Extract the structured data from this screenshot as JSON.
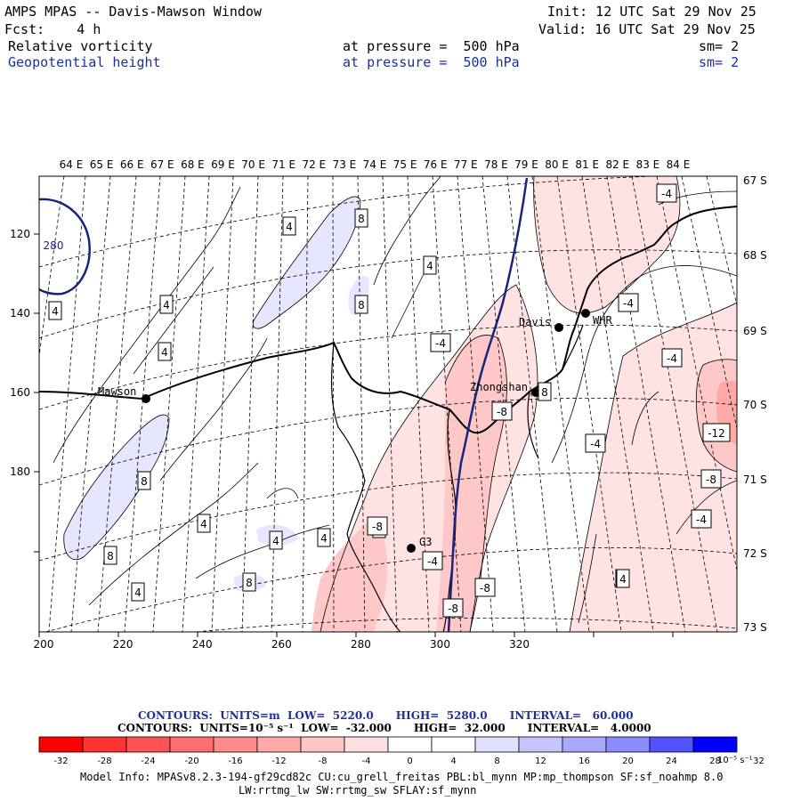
{
  "header": {
    "title": "AMPS MPAS -- Davis-Mawson Window",
    "init": "Init: 12 UTC Sat 29 Nov 25",
    "fcst": "Fcst:    4 h",
    "valid": "Valid: 16 UTC Sat 29 Nov 25",
    "field1": "Relative vorticity",
    "field1_level": "at pressure =  500 hPa",
    "field1_sm": "sm= 2",
    "field2": "Geopotential height",
    "field2_level": "at pressure =  500 hPa",
    "field2_sm": "sm= 2"
  },
  "map": {
    "lon_labels": [
      "64 E",
      "65 E",
      "66 E",
      "67 E",
      "68 E",
      "69 E",
      "70 E",
      "71 E",
      "72 E",
      "73 E",
      "74 E",
      "75 E",
      "76 E",
      "77 E",
      "78 E",
      "79 E",
      "80 E",
      "81 E",
      "82 E",
      "83 E",
      "84 E"
    ],
    "lat_labels": [
      "67 S",
      "68 S",
      "69 S",
      "70 S",
      "71 S",
      "72 S",
      "73 S"
    ],
    "x_ticks": [
      "200",
      "220",
      "240",
      "260",
      "280",
      "300",
      "320"
    ],
    "y_ticks": [
      "120",
      "140",
      "160",
      "180"
    ],
    "stations": [
      {
        "name": "Mawson"
      },
      {
        "name": "Davis"
      },
      {
        "name": "WHR"
      },
      {
        "name": "Zhongshan"
      },
      {
        "name": "G3"
      }
    ],
    "contour_labels": [
      "4",
      "4",
      "8",
      "8",
      "4",
      "4",
      "8",
      "4",
      "4",
      "4",
      "8",
      "4",
      "8",
      "4",
      "8",
      "4",
      "8",
      "-4",
      "-4",
      "-4",
      "-4",
      "-4",
      "-4",
      "-8",
      "-8",
      "-8",
      "-12",
      "-8",
      "-4",
      "-8",
      "4",
      "280"
    ],
    "height_line_color": "#1a237e"
  },
  "contour_info": {
    "line1": "CONTOURS:  UNITS=m  LOW=  5220.0      HIGH=  5280.0      INTERVAL=   60.000",
    "line2": "CONTOURS:  UNITS=10⁻⁵ s⁻¹  LOW=  -32.000      HIGH=  32.000      INTERVAL=   4.0000"
  },
  "colorbar": {
    "labels": [
      "-32",
      "-28",
      "-24",
      "-20",
      "-16",
      "-12",
      "-8",
      "-4",
      "0",
      "4",
      "8",
      "12",
      "16",
      "20",
      "24",
      "28",
      "32"
    ],
    "colors": [
      "#ff0000",
      "#ff3333",
      "#ff5252",
      "#ff6f6f",
      "#ff8c8c",
      "#ffa8a8",
      "#ffc4c4",
      "#ffe0e0",
      "#ffffff",
      "#ffffff",
      "#e0e0ff",
      "#c4c4ff",
      "#a8a8ff",
      "#8c8cff",
      "#5252ff",
      "#3333ff",
      "#0000ff"
    ],
    "unit": "10⁻⁵ s⁻¹"
  },
  "footer": {
    "line1": "Model Info: MPASv8.2.3-194-gf29cd82c CU:cu_grell_freitas PBL:bl_mynn MP:mp_thompson SF:sf_noahmp 8.0",
    "line2": "LW:rrtmg_lw SW:rrtmg_sw SFLAY:sf_mynn"
  }
}
